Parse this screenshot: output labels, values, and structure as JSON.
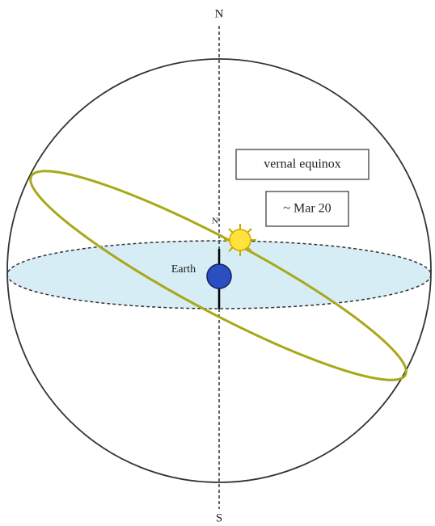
{
  "labels": {
    "north": "N",
    "south": "S",
    "event": "vernal equinox",
    "date": "~ Mar 20",
    "earth": "Earth",
    "earth_north": "N"
  }
}
